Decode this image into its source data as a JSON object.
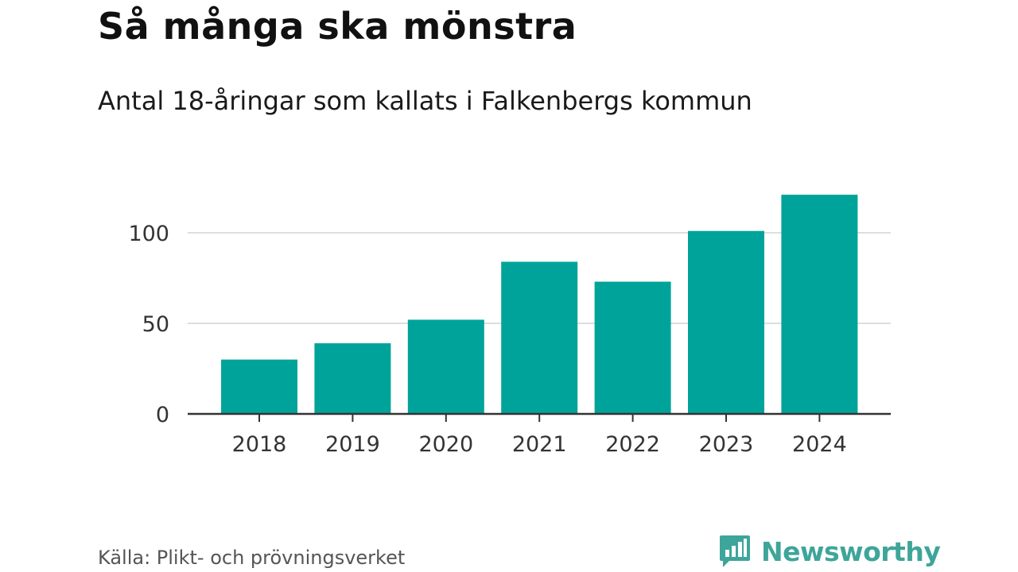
{
  "title": "Så många ska mönstra",
  "subtitle": "Antal 18-åringar som kallats i Falkenbergs kommun",
  "source": "Källa: Plikt- och prövningsverket",
  "brand": {
    "name": "Newsworthy",
    "icon": "newsworthy-logo-icon",
    "color": "#3ea59a"
  },
  "chart_data": {
    "type": "bar",
    "categories": [
      "2018",
      "2019",
      "2020",
      "2021",
      "2022",
      "2023",
      "2024"
    ],
    "values": [
      30,
      39,
      52,
      84,
      73,
      101,
      121
    ],
    "ylim": [
      0,
      125
    ],
    "yticks": [
      0,
      50,
      100
    ],
    "grid": true,
    "bar_color": "#00a39a"
  }
}
